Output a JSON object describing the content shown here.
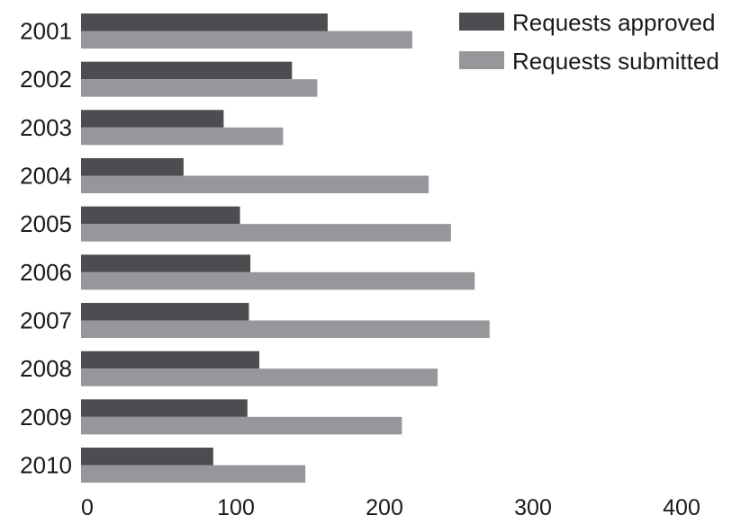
{
  "chart_data": {
    "type": "bar",
    "orientation": "horizontal",
    "categories": [
      "2001",
      "2002",
      "2003",
      "2004",
      "2005",
      "2006",
      "2007",
      "2008",
      "2009",
      "2010"
    ],
    "series": [
      {
        "name": "Requests approved",
        "color": "#4d4d51",
        "values": [
          166,
          142,
          96,
          69,
          107,
          114,
          113,
          120,
          112,
          89
        ]
      },
      {
        "name": "Requests submitted",
        "color": "#97979b",
        "values": [
          223,
          159,
          136,
          234,
          249,
          265,
          275,
          240,
          216,
          151
        ]
      }
    ],
    "xlim": [
      0,
      400
    ],
    "xticks": [
      0,
      100,
      200,
      300,
      400
    ],
    "grid": false,
    "legend_position": "top-right",
    "title": "",
    "xlabel": "",
    "ylabel": ""
  }
}
